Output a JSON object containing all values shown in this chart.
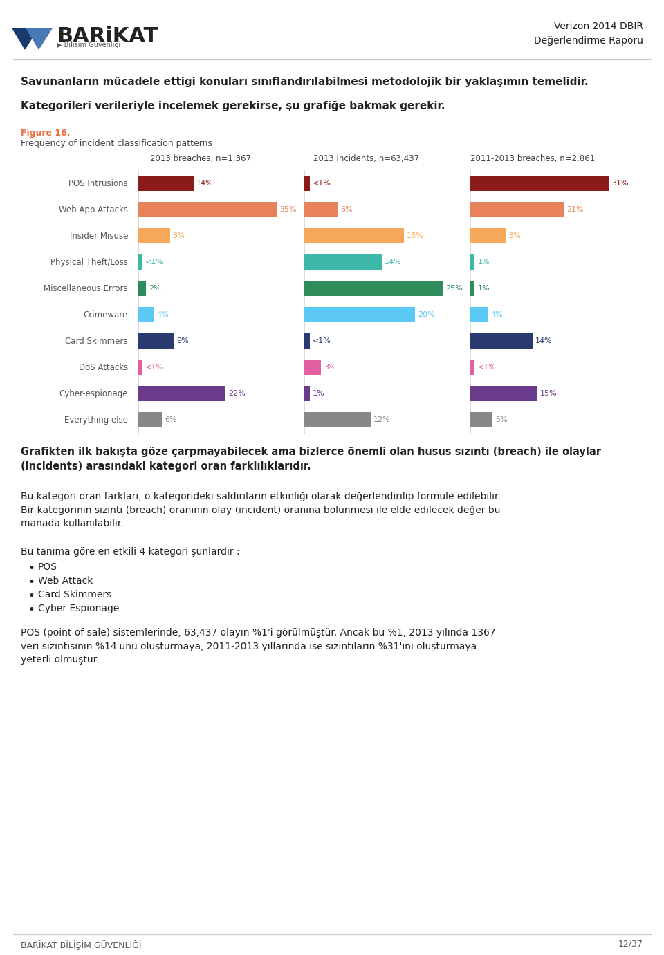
{
  "figure_label": "Figure 16.",
  "figure_subtitle": "Frequency of incident classification patterns",
  "col_headers": [
    "2013 breaches, n=1,367",
    "2013 incidents, n=63,437",
    "2011-2013 breaches, n=2,861"
  ],
  "categories": [
    "POS Intrusions",
    "Web App Attacks",
    "Insider Misuse",
    "Physical Theft/Loss",
    "Miscellaneous Errors",
    "Crimeware",
    "Card Skimmers",
    "DoS Attacks",
    "Cyber-espionage",
    "Everything else"
  ],
  "values": [
    [
      14,
      1,
      31
    ],
    [
      35,
      6,
      21
    ],
    [
      8,
      18,
      8
    ],
    [
      1,
      14,
      1
    ],
    [
      2,
      25,
      1
    ],
    [
      4,
      20,
      4
    ],
    [
      9,
      1,
      14
    ],
    [
      1,
      3,
      1
    ],
    [
      22,
      1,
      15
    ],
    [
      6,
      12,
      5
    ]
  ],
  "labels": [
    [
      "14%",
      "<1%",
      "31%"
    ],
    [
      "35%",
      "6%",
      "21%"
    ],
    [
      "8%",
      "18%",
      "8%"
    ],
    [
      "<1%",
      "14%",
      "1%"
    ],
    [
      "2%",
      "25%",
      "1%"
    ],
    [
      "4%",
      "20%",
      "4%"
    ],
    [
      "9%",
      "<1%",
      "14%"
    ],
    [
      "<1%",
      "3%",
      "<1%"
    ],
    [
      "22%",
      "1%",
      "15%"
    ],
    [
      "6%",
      "12%",
      "5%"
    ]
  ],
  "bar_colors": [
    [
      "#8B1A1A",
      "#8B1A1A",
      "#8B1A1A"
    ],
    [
      "#E8825A",
      "#E8825A",
      "#E8825A"
    ],
    [
      "#F5A85A",
      "#F5A85A",
      "#F5A85A"
    ],
    [
      "#3CB8A8",
      "#3CB8A8",
      "#3CB8A8"
    ],
    [
      "#2E8B5A",
      "#2E8B5A",
      "#2E8B5A"
    ],
    [
      "#5BC8F5",
      "#5BC8F5",
      "#5BC8F5"
    ],
    [
      "#2B3A6E",
      "#2B3A6E",
      "#2B3A6E"
    ],
    [
      "#E060A0",
      "#E060A0",
      "#E060A0"
    ],
    [
      "#6B3B8B",
      "#6B3B8B",
      "#6B3B8B"
    ],
    [
      "#888888",
      "#888888",
      "#888888"
    ]
  ],
  "label_colors": [
    [
      "#8B1A1A",
      "#8B1A1A",
      "#8B1A1A"
    ],
    [
      "#E8825A",
      "#E8825A",
      "#E8825A"
    ],
    [
      "#F5A85A",
      "#F5A85A",
      "#F5A85A"
    ],
    [
      "#3CB8A8",
      "#3CB8A8",
      "#3CB8A8"
    ],
    [
      "#2E8B5A",
      "#2E8B5A",
      "#2E8B5A"
    ],
    [
      "#5BC8F5",
      "#5BC8F5",
      "#5BC8F5"
    ],
    [
      "#2B3A6E",
      "#2B3A6E",
      "#2B3A6E"
    ],
    [
      "#E060A0",
      "#E060A0",
      "#E060A0"
    ],
    [
      "#6B3B8B",
      "#6B3B8B",
      "#6B3B8B"
    ],
    [
      "#888888",
      "#888888",
      "#888888"
    ]
  ],
  "page_header_right": "Verizon 2014 DBIR\nDeğerlendirme Raporu",
  "para1": "Savunanların mücadele ettiği konuları sınıflandırılabilmesi metodolojik bir yaklaşımın temelidir.",
  "para2": "Kategorileri verileriyle incelemek gerekirse, şu grafiğe bakmak gerekir.",
  "para3": "Grafikten ilk bakışta göze çarpmayabilecek ama bizlerce önemli olan husus sızıntı (breach) ile olaylar\n(incidents) arasındaki kategori oran farklılıklarıdır.",
  "para4": "Bu kategori oran farkları, o kategorideki saldırıların etkinliği olarak değerlendirilip formüle edilebilir.\nBir kategorinin sızıntı (breach) oranının olay (incident) oranına bölünmesi ile elde edilecek değer bu\nmanada kullanılabilir.",
  "para5": "Bu tanıma göre en etkili 4 kategori şunlardır :",
  "bullet_items": [
    "POS",
    "Web Attack",
    "Card Skimmers",
    "Cyber Espionage"
  ],
  "para6": "POS (point of sale) sistemlerinde, 63,437 olayın %1'i görülmüştür. Ancak bu %1, 2013 yılında 1367\nveri sızıntısının %14'ünü oluşturmaya, 2011-2013 yıllarında ise sızıntıların %31'ini oluşturmaya\nyeterli olmuştur.",
  "footer_left": "BARİKAT BİLİŞİM GÜVENLİĞİ",
  "footer_right": "12/37",
  "background_color": "#FFFFFF",
  "text_color": "#222222",
  "divider_color": "#CCCCCC"
}
